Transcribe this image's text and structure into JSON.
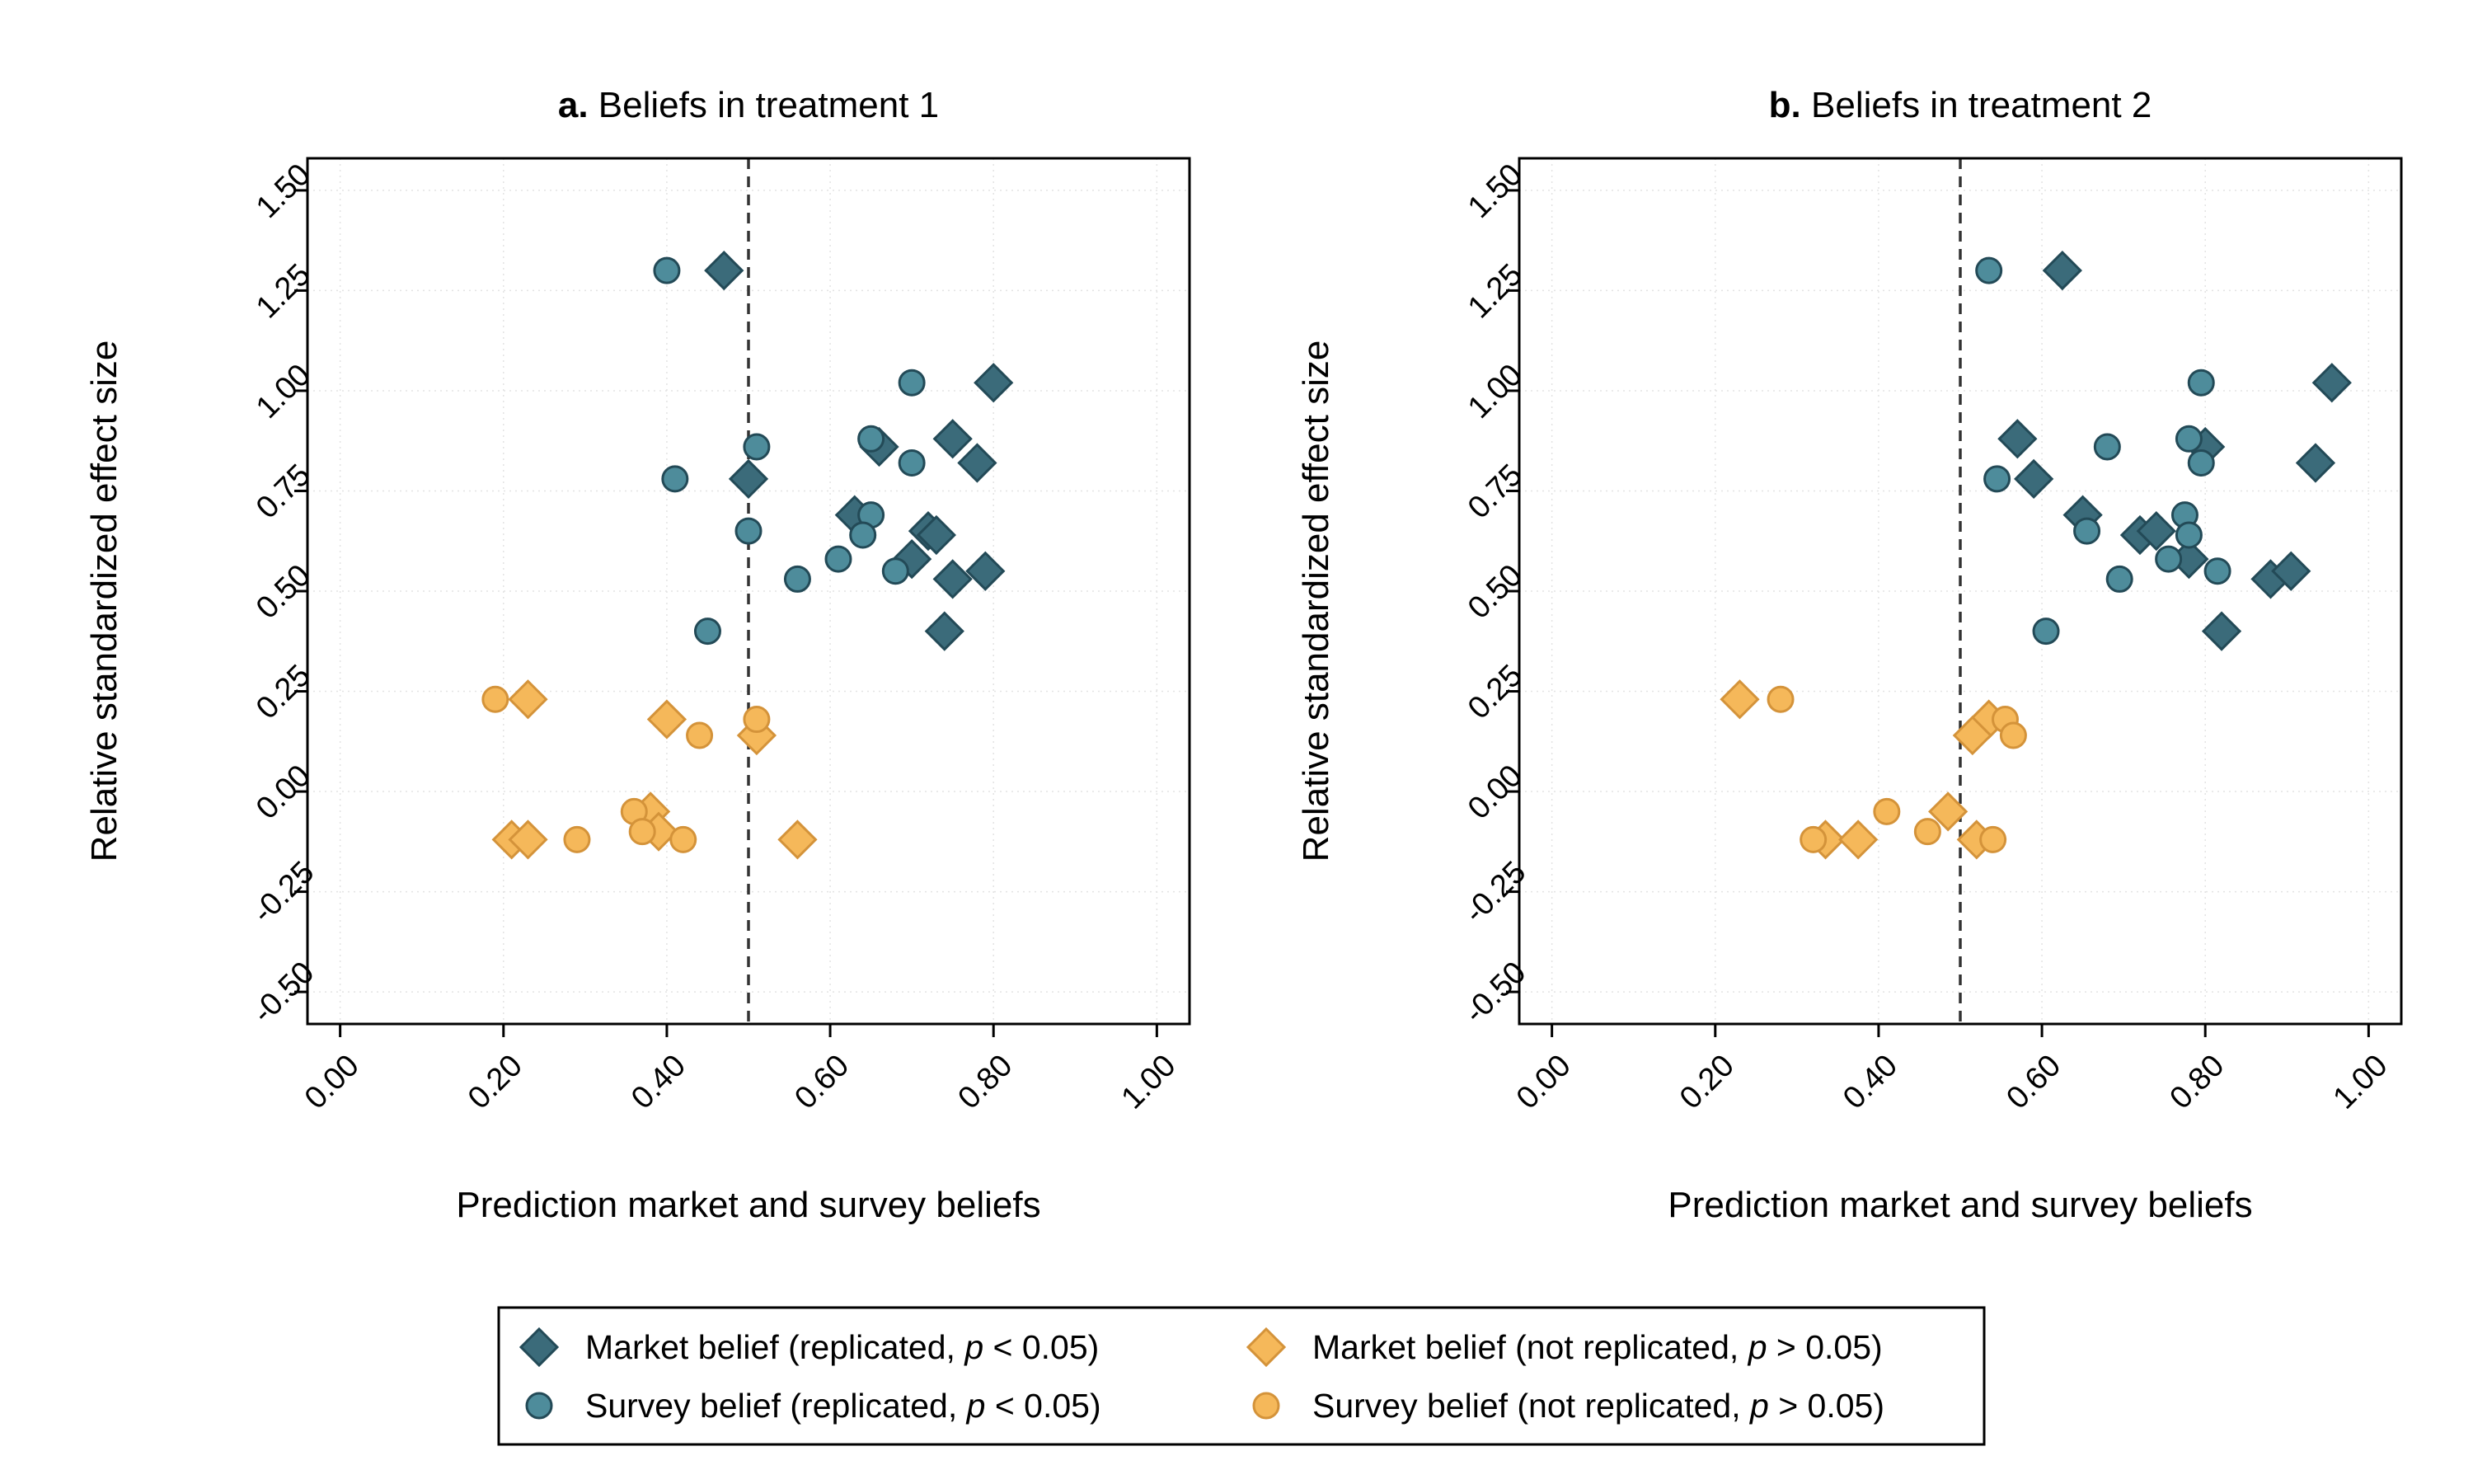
{
  "legend": {
    "items": [
      {
        "key": "market_rep",
        "text": "Market belief (replicated, ",
        "p": "p",
        "rest": " < 0.05)"
      },
      {
        "key": "survey_rep",
        "text": "Survey belief (replicated, ",
        "p": "p",
        "rest": " < 0.05)"
      },
      {
        "key": "market_not",
        "text": "Market belief (not replicated, ",
        "p": "p",
        "rest": " > 0.05)"
      },
      {
        "key": "survey_not",
        "text": "Survey belief (not replicated, ",
        "p": "p",
        "rest": " > 0.05)"
      }
    ]
  },
  "colors": {
    "replicated_fill": "#3b6b7a",
    "replicated_stroke": "#234a57",
    "replicated_circle_fill": "#4e8c9b",
    "not_replicated_fill": "#f5b85a",
    "not_replicated_stroke": "#d4933a"
  },
  "chart_data": [
    {
      "type": "scatter",
      "title_bold": "a.",
      "title": "Beliefs in treatment 1",
      "xlabel": "Prediction market and survey beliefs",
      "ylabel": "Relative standardized effect size",
      "xlim": [
        -0.04,
        1.04
      ],
      "ylim": [
        -0.58,
        1.58
      ],
      "xticks": [
        "0.00",
        "0.20",
        "0.40",
        "0.60",
        "0.80",
        "1.00"
      ],
      "xtick_values": [
        0,
        0.2,
        0.4,
        0.6,
        0.8,
        1.0
      ],
      "yticks": [
        "-0.50",
        "-0.25",
        "0.00",
        "0.25",
        "0.50",
        "0.75",
        "1.00",
        "1.25",
        "1.50"
      ],
      "ytick_values": [
        -0.5,
        -0.25,
        0,
        0.25,
        0.5,
        0.75,
        1.0,
        1.25,
        1.5
      ],
      "reference_x": 0.5,
      "series": [
        {
          "key": "market_rep",
          "marker": "diamond",
          "points": [
            [
              0.47,
              1.3
            ],
            [
              0.8,
              1.02
            ],
            [
              0.75,
              0.88
            ],
            [
              0.66,
              0.86
            ],
            [
              0.78,
              0.82
            ],
            [
              0.5,
              0.78
            ],
            [
              0.63,
              0.69
            ],
            [
              0.72,
              0.65
            ],
            [
              0.73,
              0.64
            ],
            [
              0.7,
              0.58
            ],
            [
              0.75,
              0.53
            ],
            [
              0.79,
              0.55
            ],
            [
              0.74,
              0.4
            ]
          ]
        },
        {
          "key": "survey_rep",
          "marker": "circle",
          "points": [
            [
              0.4,
              1.3
            ],
            [
              0.7,
              1.02
            ],
            [
              0.51,
              0.86
            ],
            [
              0.65,
              0.88
            ],
            [
              0.41,
              0.78
            ],
            [
              0.7,
              0.82
            ],
            [
              0.65,
              0.69
            ],
            [
              0.5,
              0.65
            ],
            [
              0.64,
              0.64
            ],
            [
              0.61,
              0.58
            ],
            [
              0.56,
              0.53
            ],
            [
              0.68,
              0.55
            ],
            [
              0.45,
              0.4
            ]
          ]
        },
        {
          "key": "market_not",
          "marker": "diamond",
          "points": [
            [
              0.23,
              0.23
            ],
            [
              0.4,
              0.18
            ],
            [
              0.51,
              0.14
            ],
            [
              0.21,
              -0.12
            ],
            [
              0.23,
              -0.12
            ],
            [
              0.38,
              -0.05
            ],
            [
              0.39,
              -0.1
            ],
            [
              0.56,
              -0.12
            ]
          ]
        },
        {
          "key": "survey_not",
          "marker": "circle",
          "points": [
            [
              0.19,
              0.23
            ],
            [
              0.51,
              0.18
            ],
            [
              0.44,
              0.14
            ],
            [
              0.29,
              -0.12
            ],
            [
              0.36,
              -0.05
            ],
            [
              0.37,
              -0.1
            ],
            [
              0.42,
              -0.12
            ]
          ]
        }
      ]
    },
    {
      "type": "scatter",
      "title_bold": "b.",
      "title": "Beliefs in treatment 2",
      "xlabel": "Prediction market and survey beliefs",
      "ylabel": "Relative standardized effect size",
      "xlim": [
        -0.04,
        1.04
      ],
      "ylim": [
        -0.58,
        1.58
      ],
      "xticks": [
        "0.00",
        "0.20",
        "0.40",
        "0.60",
        "0.80",
        "1.00"
      ],
      "xtick_values": [
        0,
        0.2,
        0.4,
        0.6,
        0.8,
        1.0
      ],
      "yticks": [
        "-0.50",
        "-0.25",
        "0.00",
        "0.25",
        "0.50",
        "0.75",
        "1.00",
        "1.25",
        "1.50"
      ],
      "ytick_values": [
        -0.5,
        -0.25,
        0,
        0.25,
        0.5,
        0.75,
        1.0,
        1.25,
        1.5
      ],
      "reference_x": 0.5,
      "series": [
        {
          "key": "market_rep",
          "marker": "diamond",
          "points": [
            [
              0.625,
              1.3
            ],
            [
              0.955,
              1.02
            ],
            [
              0.57,
              0.88
            ],
            [
              0.8,
              0.86
            ],
            [
              0.935,
              0.82
            ],
            [
              0.59,
              0.78
            ],
            [
              0.65,
              0.69
            ],
            [
              0.72,
              0.64
            ],
            [
              0.74,
              0.65
            ],
            [
              0.78,
              0.58
            ],
            [
              0.88,
              0.53
            ],
            [
              0.905,
              0.55
            ],
            [
              0.82,
              0.4
            ]
          ]
        },
        {
          "key": "survey_rep",
          "marker": "circle",
          "points": [
            [
              0.535,
              1.3
            ],
            [
              0.795,
              1.02
            ],
            [
              0.68,
              0.86
            ],
            [
              0.78,
              0.88
            ],
            [
              0.545,
              0.78
            ],
            [
              0.795,
              0.82
            ],
            [
              0.775,
              0.69
            ],
            [
              0.655,
              0.65
            ],
            [
              0.78,
              0.64
            ],
            [
              0.755,
              0.58
            ],
            [
              0.695,
              0.53
            ],
            [
              0.815,
              0.55
            ],
            [
              0.605,
              0.4
            ]
          ]
        },
        {
          "key": "market_not",
          "marker": "diamond",
          "points": [
            [
              0.23,
              0.23
            ],
            [
              0.535,
              0.18
            ],
            [
              0.515,
              0.14
            ],
            [
              0.335,
              -0.12
            ],
            [
              0.375,
              -0.12
            ],
            [
              0.485,
              -0.05
            ],
            [
              0.52,
              -0.12
            ]
          ]
        },
        {
          "key": "survey_not",
          "marker": "circle",
          "points": [
            [
              0.28,
              0.23
            ],
            [
              0.555,
              0.18
            ],
            [
              0.565,
              0.14
            ],
            [
              0.32,
              -0.12
            ],
            [
              0.41,
              -0.05
            ],
            [
              0.46,
              -0.1
            ],
            [
              0.54,
              -0.12
            ]
          ]
        }
      ]
    }
  ]
}
